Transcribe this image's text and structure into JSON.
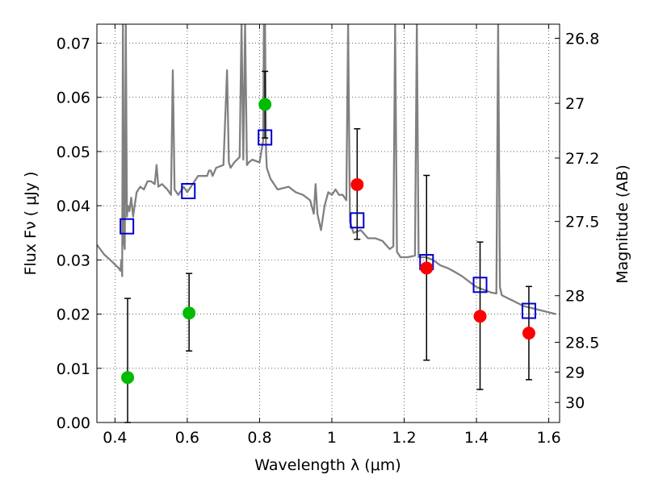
{
  "chart_data": {
    "type": "scatter",
    "xlabel": "Wavelength  λ (μm)",
    "ylabel": "Flux  Fν  ( μJy )",
    "y2label": "Magnitude (AB)",
    "xlim": [
      0.35,
      1.63
    ],
    "ylim": [
      0.0,
      0.0735
    ],
    "grid": true,
    "xticks": [
      {
        "v": 0.4,
        "label": "0.4"
      },
      {
        "v": 0.6,
        "label": "0.6"
      },
      {
        "v": 0.8,
        "label": "0.8"
      },
      {
        "v": 1.0,
        "label": "1"
      },
      {
        "v": 1.2,
        "label": "1.2"
      },
      {
        "v": 1.4,
        "label": "1.4"
      },
      {
        "v": 1.6,
        "label": "1.6"
      }
    ],
    "yticks": [
      {
        "v": 0.0,
        "label": "0.00"
      },
      {
        "v": 0.01,
        "label": "0.01"
      },
      {
        "v": 0.02,
        "label": "0.02"
      },
      {
        "v": 0.03,
        "label": "0.03"
      },
      {
        "v": 0.04,
        "label": "0.04"
      },
      {
        "v": 0.05,
        "label": "0.05"
      },
      {
        "v": 0.06,
        "label": "0.06"
      },
      {
        "v": 0.07,
        "label": "0.07"
      }
    ],
    "y2ticks": [
      {
        "label": "26.8",
        "flux": 0.0709
      },
      {
        "label": "27",
        "flux": 0.0589
      },
      {
        "label": "27.2",
        "flux": 0.0488
      },
      {
        "label": "27.5",
        "flux": 0.0371
      },
      {
        "label": "28",
        "flux": 0.0234
      },
      {
        "label": "28.5",
        "flux": 0.0148
      },
      {
        "label": "29",
        "flux": 0.0093
      },
      {
        "label": "30",
        "flux": 0.0037
      }
    ],
    "colors": {
      "spectrum": "#808080",
      "model_box": "#0000cc",
      "green_points": "#00bb00",
      "red_points": "#ff0000",
      "errorbars": "#000000",
      "grid": "#000000"
    },
    "series": [
      {
        "role": "spectrum",
        "x": [
          0.35,
          0.37,
          0.39,
          0.41,
          0.415,
          0.418,
          0.42,
          0.422,
          0.425,
          0.427,
          0.43,
          0.433,
          0.436,
          0.44,
          0.445,
          0.45,
          0.46,
          0.47,
          0.48,
          0.49,
          0.5,
          0.51,
          0.515,
          0.52,
          0.53,
          0.545,
          0.555,
          0.56,
          0.565,
          0.575,
          0.59,
          0.6,
          0.63,
          0.655,
          0.66,
          0.665,
          0.67,
          0.68,
          0.7,
          0.71,
          0.715,
          0.72,
          0.73,
          0.745,
          0.75,
          0.755,
          0.76,
          0.765,
          0.77,
          0.78,
          0.8,
          0.81,
          0.812,
          0.815,
          0.818,
          0.82,
          0.83,
          0.85,
          0.88,
          0.9,
          0.92,
          0.94,
          0.95,
          0.955,
          0.96,
          0.97,
          0.98,
          0.99,
          1.0,
          1.01,
          1.02,
          1.03,
          1.04,
          1.045,
          1.05,
          1.06,
          1.08,
          1.1,
          1.12,
          1.14,
          1.16,
          1.17,
          1.175,
          1.18,
          1.19,
          1.21,
          1.23,
          1.235,
          1.24,
          1.26,
          1.28,
          1.3,
          1.32,
          1.34,
          1.36,
          1.38,
          1.4,
          1.42,
          1.44,
          1.455,
          1.46,
          1.465,
          1.47,
          1.5,
          1.53,
          1.56,
          1.59,
          1.62
        ],
        "y": [
          0.0328,
          0.031,
          0.0298,
          0.0285,
          0.028,
          0.03,
          0.027,
          0.0735,
          0.033,
          0.032,
          0.0735,
          0.038,
          0.04,
          0.039,
          0.0415,
          0.038,
          0.0425,
          0.0435,
          0.043,
          0.0445,
          0.0445,
          0.044,
          0.0475,
          0.0435,
          0.044,
          0.043,
          0.042,
          0.065,
          0.043,
          0.042,
          0.0435,
          0.0425,
          0.0455,
          0.0455,
          0.0465,
          0.0465,
          0.0455,
          0.047,
          0.0475,
          0.065,
          0.048,
          0.047,
          0.048,
          0.049,
          0.0735,
          0.0485,
          0.0735,
          0.0475,
          0.048,
          0.0485,
          0.048,
          0.052,
          0.0735,
          0.0735,
          0.05,
          0.047,
          0.045,
          0.043,
          0.0435,
          0.0425,
          0.042,
          0.041,
          0.0385,
          0.044,
          0.0385,
          0.0355,
          0.04,
          0.0425,
          0.042,
          0.043,
          0.042,
          0.042,
          0.041,
          0.0735,
          0.037,
          0.035,
          0.0355,
          0.034,
          0.034,
          0.0335,
          0.032,
          0.0325,
          0.0735,
          0.0315,
          0.0305,
          0.0305,
          0.0308,
          0.0735,
          0.0305,
          0.0305,
          0.03,
          0.029,
          0.0285,
          0.0278,
          0.027,
          0.026,
          0.025,
          0.0245,
          0.024,
          0.0238,
          0.0735,
          0.025,
          0.0235,
          0.0225,
          0.0215,
          0.021,
          0.0205,
          0.02
        ]
      },
      {
        "role": "model_boxes",
        "x": [
          0.433,
          0.603,
          0.815,
          1.07,
          1.262,
          1.41,
          1.545
        ],
        "y": [
          0.0362,
          0.0427,
          0.0526,
          0.0373,
          0.0296,
          0.0254,
          0.0206
        ]
      },
      {
        "role": "green_points",
        "x": [
          0.435,
          0.605,
          0.815
        ],
        "y": [
          0.0083,
          0.0202,
          0.0587
        ],
        "yerr_low": [
          0.0,
          0.0132,
          0.0525
        ],
        "yerr_high": [
          0.0229,
          0.0275,
          0.0648
        ]
      },
      {
        "role": "red_points",
        "x": [
          1.07,
          1.262,
          1.41,
          1.545
        ],
        "y": [
          0.0439,
          0.0285,
          0.0196,
          0.0165
        ],
        "yerr_low": [
          0.0338,
          0.0115,
          0.0061,
          0.0079
        ],
        "yerr_high": [
          0.0542,
          0.0456,
          0.0333,
          0.0251
        ]
      }
    ]
  }
}
